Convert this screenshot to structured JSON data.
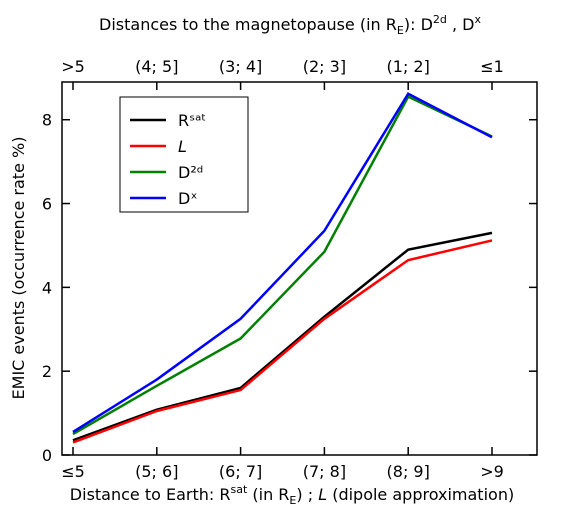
{
  "chart_data": {
    "type": "line",
    "title_parts": [
      "Distances to the magnetopause (in R",
      "E",
      "): D",
      "2d",
      " , D",
      "x"
    ],
    "xlabel_parts": [
      "Distance to Earth: R",
      "sat",
      " (in R",
      "E",
      ") ; ",
      "L",
      " (dipole approximation)"
    ],
    "ylabel": "EMIC events (occurrence rate %)",
    "categories": [
      "≤5",
      "(5; 6]",
      "(6; 7]",
      "(7; 8]",
      "(8; 9]",
      ">9"
    ],
    "top_categories": [
      ">5",
      "(4; 5]",
      "(3; 4]",
      "(2; 3]",
      "(1; 2]",
      "≤1"
    ],
    "series": [
      {
        "name": "Rˢᵃᵗ",
        "color": "#000000",
        "values": [
          0.35,
          1.08,
          1.6,
          3.3,
          4.9,
          5.3
        ]
      },
      {
        "name": "L",
        "color": "#ff0000",
        "values": [
          0.3,
          1.05,
          1.55,
          3.25,
          4.65,
          5.12
        ]
      },
      {
        "name": "D²ᵈ",
        "color": "#008000",
        "values": [
          0.5,
          1.65,
          2.78,
          4.85,
          8.55,
          7.6
        ]
      },
      {
        "name": "Dˣ",
        "color": "#0000ff",
        "values": [
          0.55,
          1.8,
          3.25,
          5.35,
          8.62,
          7.58
        ]
      }
    ],
    "ylim": [
      0,
      8.9
    ],
    "yticks": [
      0,
      2,
      4,
      6,
      8
    ],
    "legend": "upper left"
  }
}
